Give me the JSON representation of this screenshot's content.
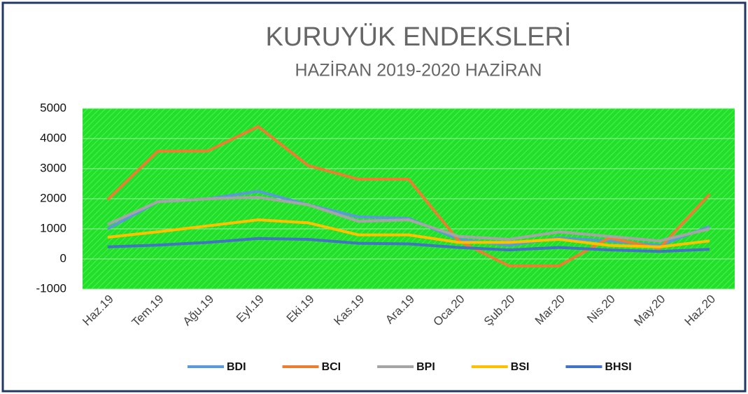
{
  "chart_data": {
    "type": "line",
    "title": "KURUYÜK ENDEKSLERİ",
    "subtitle": "HAZİRAN 2019-2020 HAZİRAN",
    "categories": [
      "Haz.19",
      "Tem.19",
      "Ağu.19",
      "Eyl.19",
      "Eki.19",
      "Kas.19",
      "Ara.19",
      "Oca.20",
      "Şub.20",
      "Mar.20",
      "Nis.20",
      "May.20",
      "Haz.20"
    ],
    "series": [
      {
        "name": "BDI",
        "color": "#5b9bd5",
        "values": [
          1000,
          1900,
          2000,
          2250,
          1800,
          1400,
          1350,
          650,
          450,
          700,
          600,
          450,
          1080
        ]
      },
      {
        "name": "BCI",
        "color": "#ed7d31",
        "values": [
          1970,
          3580,
          3590,
          4400,
          3100,
          2650,
          2650,
          600,
          -230,
          -230,
          700,
          350,
          2150
        ]
      },
      {
        "name": "BPI",
        "color": "#a5a5a5",
        "values": [
          1150,
          1900,
          2000,
          2050,
          1800,
          1250,
          1300,
          750,
          650,
          900,
          750,
          600,
          1000
        ]
      },
      {
        "name": "BSI",
        "color": "#ffc000",
        "values": [
          720,
          900,
          1100,
          1300,
          1200,
          800,
          800,
          550,
          550,
          650,
          450,
          400,
          600
        ]
      },
      {
        "name": "BHSI",
        "color": "#4472c4",
        "values": [
          400,
          460,
          550,
          680,
          650,
          520,
          500,
          380,
          300,
          380,
          300,
          250,
          320
        ]
      }
    ],
    "ylim": [
      -1000,
      5000
    ],
    "yticks": [
      -1000,
      0,
      1000,
      2000,
      3000,
      4000,
      5000
    ],
    "grid": true
  }
}
